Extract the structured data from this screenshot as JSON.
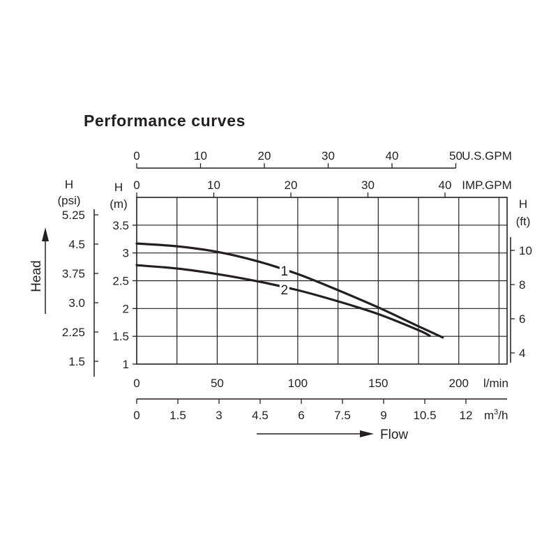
{
  "chart_data": {
    "type": "line",
    "title": "Performance curves",
    "primary_x": {
      "label": "l/min",
      "range": [
        0,
        230
      ],
      "ticks": [
        "0",
        "50",
        "100",
        "150",
        "200"
      ],
      "grid_every": 25
    },
    "primary_y": {
      "label_top": "H",
      "label_unit": "(m)",
      "range": [
        1,
        4
      ],
      "ticks": [
        "1",
        "1.5",
        "2",
        "2.5",
        "3",
        "3.5"
      ],
      "grid_every": 0.5
    },
    "secondary_axes": {
      "us_gpm": {
        "label": "U.S.GPM",
        "ticks": [
          "0",
          "10",
          "20",
          "30",
          "40",
          "50"
        ]
      },
      "imp_gpm": {
        "label": "IMP.GPM",
        "ticks": [
          "0",
          "10",
          "20",
          "30",
          "40"
        ]
      },
      "m3h": {
        "label_base": "m",
        "label_sup": "3",
        "label_tail": "/h",
        "ticks": [
          "0",
          "1.5",
          "3",
          "4.5",
          "6",
          "7.5",
          "9",
          "10.5",
          "12"
        ]
      },
      "psi": {
        "label_top": "H",
        "label_unit": "(psi)",
        "ticks": [
          "1.5",
          "2.25",
          "3.0",
          "3.75",
          "4.5",
          "5.25"
        ]
      },
      "ft": {
        "label_top": "H",
        "label_unit": "(ft)",
        "ticks": [
          "4",
          "6",
          "8",
          "10"
        ]
      }
    },
    "head_label": "Head",
    "flow_label": "Flow",
    "grid": true,
    "series": [
      {
        "name": "1",
        "x": [
          0,
          25,
          50,
          75,
          100,
          125,
          150,
          175,
          190
        ],
        "y": [
          3.17,
          3.12,
          3.02,
          2.85,
          2.62,
          2.33,
          2.02,
          1.68,
          1.48
        ]
      },
      {
        "name": "2",
        "x": [
          0,
          25,
          50,
          75,
          100,
          125,
          150,
          175,
          182
        ],
        "y": [
          2.78,
          2.72,
          2.62,
          2.49,
          2.33,
          2.13,
          1.9,
          1.61,
          1.51
        ]
      }
    ]
  }
}
